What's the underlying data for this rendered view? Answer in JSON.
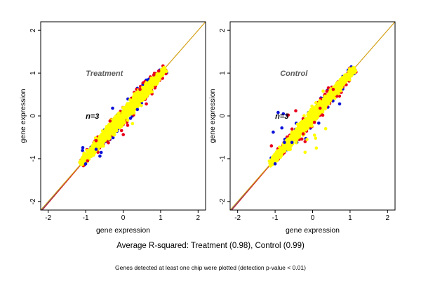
{
  "colors": {
    "identity_line": "#d4a016",
    "fit_lines": [
      "#1f3fd0",
      "#d81b1b"
    ],
    "points": {
      "yellow": "#ffff00",
      "red": "#e8001a",
      "blue": "#0a10d8"
    }
  },
  "captions": {
    "main": "Average R-squared: Treatment (0.98), Control (0.99)",
    "footnote": "Genes detected at least one chip were plotted (detection p-value < 0.01)"
  },
  "chart_data": [
    {
      "type": "scatter",
      "title": "Treatment",
      "annotation": "n=3",
      "xlabel": "gene expression",
      "ylabel": "gene expression",
      "xlim": [
        -2.2,
        2.2
      ],
      "ylim": [
        -2.2,
        2.2
      ],
      "xticks": [
        "-2",
        "-1",
        "0",
        "1",
        "2"
      ],
      "yticks": [
        "-2",
        "-1",
        "0",
        "1",
        "2"
      ],
      "grid": false,
      "diagonal_lines": true,
      "bulk_cloud": {
        "x_range": [
          -1.15,
          1.12
        ],
        "slope": 0.98,
        "spread": 0.09
      },
      "series": [
        {
          "color": "blue",
          "points": [
            [
              -0.28,
              0.18
            ],
            [
              -0.72,
              -0.78
            ],
            [
              0.38,
              0.15
            ],
            [
              -1.0,
              -1.12
            ],
            [
              -0.62,
              -0.94
            ]
          ]
        },
        {
          "color": "red",
          "points": [
            [
              0.62,
              0.28
            ],
            [
              0.12,
              -0.22
            ],
            [
              -0.72,
              -0.58
            ],
            [
              0.82,
              0.96
            ],
            [
              -0.95,
              -1.05
            ],
            [
              -0.35,
              -0.12
            ],
            [
              0.45,
              0.62
            ],
            [
              0.95,
              1.05
            ]
          ]
        },
        {
          "color": "yellow",
          "points": [
            [
              0.25,
              -0.18
            ],
            [
              0.62,
              0.78
            ],
            [
              -0.55,
              -0.35
            ]
          ]
        }
      ]
    },
    {
      "type": "scatter",
      "title": "Control",
      "annotation": "n=3",
      "xlabel": "gene expression",
      "ylabel": "gene expression",
      "xlim": [
        -2.2,
        2.2
      ],
      "ylim": [
        -2.2,
        2.2
      ],
      "xticks": [
        "-2",
        "-1",
        "0",
        "1",
        "2"
      ],
      "yticks": [
        "-2",
        "-1",
        "0",
        "1",
        "2"
      ],
      "grid": false,
      "diagonal_lines": true,
      "bulk_cloud": {
        "x_range": [
          -1.15,
          1.12
        ],
        "slope": 0.99,
        "spread": 0.08
      },
      "series": [
        {
          "color": "blue",
          "points": [
            [
              -0.92,
              0.08
            ],
            [
              -0.78,
              0.05
            ],
            [
              -0.68,
              0.02
            ],
            [
              -1.05,
              -0.38
            ],
            [
              -0.75,
              -0.62
            ],
            [
              -0.55,
              -0.62
            ],
            [
              -0.82,
              -0.28
            ],
            [
              0.72,
              0.28
            ],
            [
              -1.0,
              -1.12
            ]
          ]
        },
        {
          "color": "red",
          "points": [
            [
              -0.45,
              0.12
            ],
            [
              -0.65,
              0.02
            ],
            [
              -1.1,
              -0.7
            ],
            [
              -0.2,
              -0.6
            ],
            [
              0.2,
              0.18
            ],
            [
              0.38,
              0.58
            ],
            [
              0.55,
              0.62
            ],
            [
              -0.25,
              -0.42
            ],
            [
              0.05,
              -0.15
            ]
          ]
        },
        {
          "color": "yellow",
          "points": [
            [
              0.28,
              0.58
            ],
            [
              0.08,
              -0.52
            ],
            [
              0.1,
              -0.75
            ],
            [
              -0.2,
              -0.85
            ],
            [
              0.05,
              -0.45
            ],
            [
              -0.15,
              -0.55
            ],
            [
              0.35,
              -0.3
            ]
          ]
        }
      ]
    }
  ]
}
